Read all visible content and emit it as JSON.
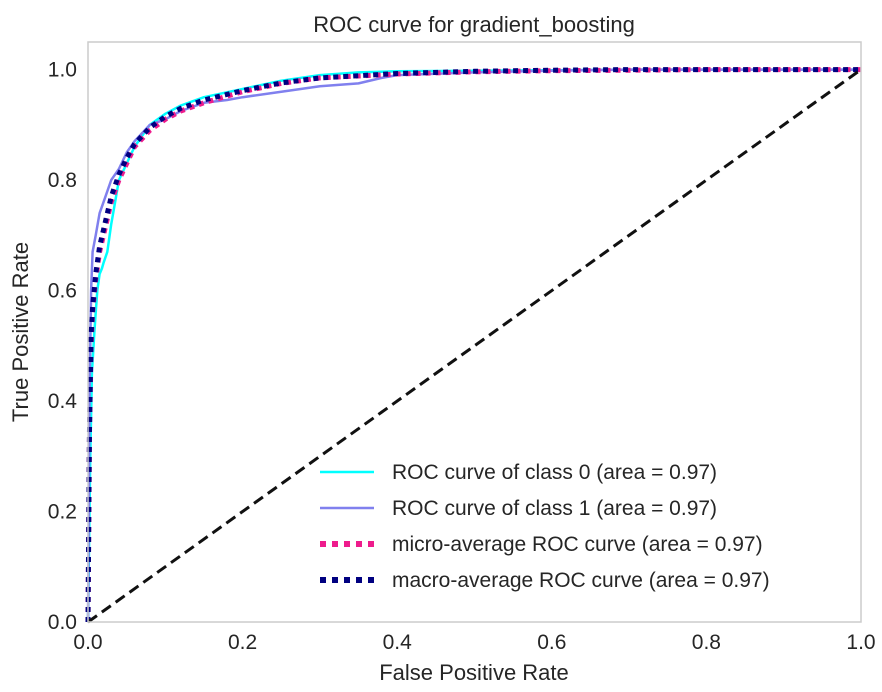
{
  "chart_data": {
    "type": "line",
    "title": "ROC curve for gradient_boosting",
    "xlabel": "False Positive Rate",
    "ylabel": "True Positive Rate",
    "xlim": [
      0.0,
      1.0
    ],
    "ylim": [
      0.0,
      1.05
    ],
    "xticks": [
      "0.0",
      "0.2",
      "0.4",
      "0.6",
      "0.8",
      "1.0"
    ],
    "yticks": [
      "0.0",
      "0.2",
      "0.4",
      "0.6",
      "0.8",
      "1.0"
    ],
    "grid": false,
    "legend_position": "lower-right",
    "series": [
      {
        "name": "ROC curve of class 0 (area = 0.97)",
        "color": "#00ffff",
        "style": "solid",
        "x": [
          0.0,
          0.003,
          0.005,
          0.008,
          0.01,
          0.012,
          0.015,
          0.018,
          0.02,
          0.025,
          0.03,
          0.035,
          0.04,
          0.05,
          0.06,
          0.07,
          0.08,
          0.1,
          0.12,
          0.15,
          0.2,
          0.25,
          0.3,
          0.35,
          0.4,
          0.5,
          0.6,
          0.7,
          0.8,
          0.9,
          1.0
        ],
        "y": [
          0.0,
          0.3,
          0.45,
          0.52,
          0.56,
          0.6,
          0.63,
          0.64,
          0.65,
          0.67,
          0.72,
          0.76,
          0.8,
          0.83,
          0.86,
          0.88,
          0.9,
          0.92,
          0.935,
          0.95,
          0.965,
          0.98,
          0.99,
          0.995,
          0.997,
          0.998,
          0.999,
          1.0,
          1.0,
          1.0,
          1.0
        ]
      },
      {
        "name": "ROC curve of class 1 (area = 0.97)",
        "color": "#8080ee",
        "style": "solid",
        "x": [
          0.0,
          0.002,
          0.004,
          0.006,
          0.01,
          0.015,
          0.02,
          0.03,
          0.04,
          0.05,
          0.06,
          0.08,
          0.1,
          0.12,
          0.15,
          0.18,
          0.2,
          0.25,
          0.3,
          0.35,
          0.38,
          0.4,
          0.5,
          0.6,
          0.7,
          0.8,
          0.9,
          1.0
        ],
        "y": [
          0.0,
          0.4,
          0.6,
          0.67,
          0.7,
          0.74,
          0.76,
          0.8,
          0.82,
          0.85,
          0.87,
          0.9,
          0.91,
          0.925,
          0.94,
          0.945,
          0.95,
          0.96,
          0.97,
          0.975,
          0.985,
          0.99,
          0.995,
          0.998,
          1.0,
          1.0,
          1.0,
          1.0
        ]
      },
      {
        "name": "micro-average ROC curve (area = 0.97)",
        "color": "#ee1c8c",
        "style": "dotted",
        "x": [
          0.0,
          0.002,
          0.004,
          0.006,
          0.01,
          0.015,
          0.02,
          0.03,
          0.04,
          0.05,
          0.06,
          0.08,
          0.1,
          0.12,
          0.15,
          0.2,
          0.25,
          0.3,
          0.4,
          0.5,
          0.6,
          0.7,
          0.8,
          0.9,
          1.0
        ],
        "y": [
          0.0,
          0.35,
          0.5,
          0.56,
          0.62,
          0.67,
          0.7,
          0.76,
          0.8,
          0.83,
          0.86,
          0.89,
          0.91,
          0.925,
          0.94,
          0.96,
          0.975,
          0.985,
          0.992,
          0.996,
          0.998,
          0.999,
          1.0,
          1.0,
          1.0
        ]
      },
      {
        "name": "macro-average ROC curve (area = 0.97)",
        "color": "#000080",
        "style": "dotted",
        "x": [
          0.0,
          0.002,
          0.004,
          0.006,
          0.01,
          0.015,
          0.02,
          0.03,
          0.04,
          0.05,
          0.06,
          0.08,
          0.1,
          0.12,
          0.15,
          0.2,
          0.25,
          0.3,
          0.4,
          0.5,
          0.6,
          0.7,
          0.8,
          0.9,
          1.0
        ],
        "y": [
          0.0,
          0.35,
          0.52,
          0.57,
          0.63,
          0.68,
          0.71,
          0.77,
          0.81,
          0.84,
          0.865,
          0.895,
          0.915,
          0.93,
          0.945,
          0.962,
          0.976,
          0.985,
          0.993,
          0.997,
          0.999,
          1.0,
          1.0,
          1.0,
          1.0
        ]
      },
      {
        "name": "",
        "color": "#111111",
        "style": "dashed",
        "x": [
          0.0,
          1.0
        ],
        "y": [
          0.0,
          1.0
        ]
      }
    ]
  }
}
